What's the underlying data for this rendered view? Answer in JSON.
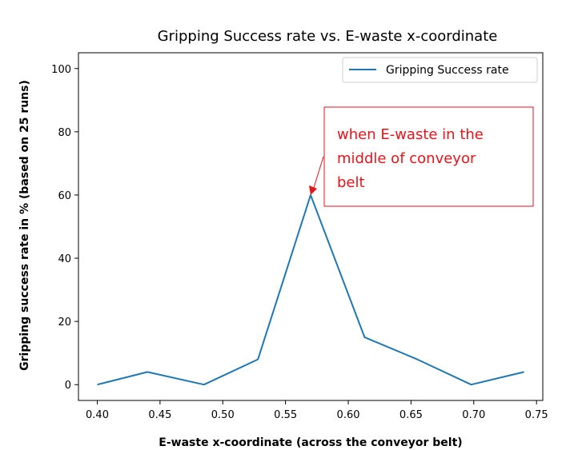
{
  "chart_data": {
    "type": "line",
    "title": "Gripping Success rate vs. E-waste x-coordinate",
    "xlabel": "E-waste x-coordinate (across the conveyor belt)",
    "ylabel": "Gripping success rate in % (based on 25 runs)",
    "xlim": [
      0.385,
      0.755
    ],
    "ylim": [
      -5,
      105
    ],
    "xticks": [
      "0.40",
      "0.45",
      "0.50",
      "0.55",
      "0.60",
      "0.65",
      "0.70",
      "0.75"
    ],
    "xtick_values": [
      0.4,
      0.45,
      0.5,
      0.55,
      0.6,
      0.65,
      0.7,
      0.75
    ],
    "yticks": [
      "0",
      "20",
      "40",
      "60",
      "80",
      "100"
    ],
    "ytick_values": [
      0,
      20,
      40,
      60,
      80,
      100
    ],
    "grid": false,
    "legend_position": "top-right",
    "series": [
      {
        "name": "Gripping Success rate",
        "color": "#1f77b4",
        "x": [
          0.4,
          0.44,
          0.485,
          0.528,
          0.57,
          0.613,
          0.655,
          0.698,
          0.74
        ],
        "y": [
          0,
          4,
          0,
          8,
          60,
          15,
          8,
          0,
          4
        ]
      }
    ],
    "annotation": {
      "lines": [
        "when E-waste in the",
        "middle of conveyor",
        "belt"
      ],
      "color": "#e8141b",
      "target": [
        0.57,
        60
      ]
    }
  }
}
